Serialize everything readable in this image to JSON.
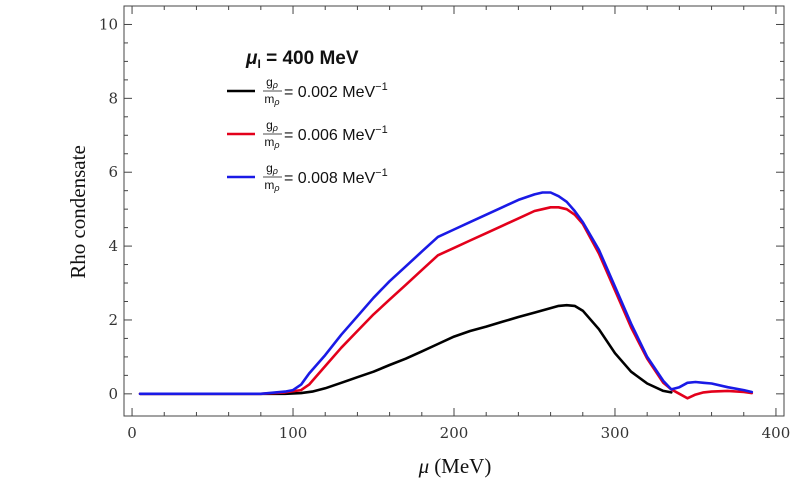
{
  "chart_data": {
    "type": "line",
    "title": "",
    "xlabel_symbol": "μ",
    "xlabel_unit": "(MeV)",
    "ylabel": "Rho condensate",
    "xlim": [
      -5,
      405
    ],
    "ylim": [
      -0.6,
      10.5
    ],
    "xticks": [
      0,
      100,
      200,
      300,
      400
    ],
    "yticks": [
      0,
      2,
      4,
      6,
      8,
      10
    ],
    "grid": false,
    "legend": {
      "placement": "top-left",
      "header_symbol": "μ",
      "header_subscript": "I",
      "header_value": " = 400 MeV",
      "frac_numerator": "g",
      "frac_numerator_sub": "ρ",
      "frac_denominator": "m",
      "frac_denominator_sub": "ρ"
    },
    "series": [
      {
        "name": "g_ρ/m_ρ = 0.002 MeV⁻¹",
        "value_text": " = 0.002 MeV",
        "exponent": "−1",
        "color": "#000000",
        "x": [
          5,
          40,
          60,
          80,
          95,
          105,
          112,
          120,
          130,
          140,
          150,
          160,
          170,
          180,
          190,
          200,
          210,
          220,
          230,
          240,
          250,
          260,
          265,
          270,
          275,
          280,
          290,
          300,
          310,
          320,
          330,
          335
        ],
        "y": [
          0,
          0,
          0,
          0,
          0,
          0.02,
          0.06,
          0.15,
          0.3,
          0.45,
          0.6,
          0.78,
          0.95,
          1.15,
          1.35,
          1.55,
          1.7,
          1.82,
          1.95,
          2.08,
          2.2,
          2.32,
          2.38,
          2.4,
          2.38,
          2.25,
          1.75,
          1.1,
          0.6,
          0.28,
          0.08,
          0.04
        ]
      },
      {
        "name": "g_ρ/m_ρ = 0.006 MeV⁻¹",
        "value_text": " = 0.006 MeV",
        "exponent": "−1",
        "color": "#e3001b",
        "x": [
          5,
          40,
          60,
          80,
          95,
          105,
          110,
          120,
          130,
          140,
          150,
          160,
          170,
          180,
          190,
          200,
          210,
          220,
          230,
          240,
          250,
          255,
          260,
          265,
          270,
          275,
          280,
          290,
          300,
          310,
          320,
          330,
          335,
          340,
          345,
          350,
          355,
          360,
          370,
          380,
          385
        ],
        "y": [
          0,
          0,
          0,
          0,
          0.04,
          0.1,
          0.25,
          0.75,
          1.25,
          1.7,
          2.15,
          2.55,
          2.95,
          3.35,
          3.75,
          3.95,
          4.15,
          4.35,
          4.55,
          4.75,
          4.95,
          5.0,
          5.05,
          5.05,
          5.0,
          4.85,
          4.6,
          3.8,
          2.8,
          1.8,
          0.95,
          0.3,
          0.12,
          0.0,
          -0.12,
          -0.02,
          0.04,
          0.06,
          0.08,
          0.05,
          0.02
        ]
      },
      {
        "name": "g_ρ/m_ρ = 0.008 MeV⁻¹",
        "value_text": " = 0.008 MeV",
        "exponent": "−1",
        "color": "#1a1ae6",
        "x": [
          5,
          40,
          60,
          80,
          95,
          100,
          105,
          110,
          120,
          130,
          140,
          150,
          160,
          170,
          180,
          190,
          200,
          210,
          220,
          230,
          240,
          250,
          255,
          260,
          265,
          270,
          275,
          280,
          290,
          300,
          310,
          320,
          330,
          335,
          340,
          345,
          350,
          355,
          360,
          370,
          380,
          385
        ],
        "y": [
          0,
          0,
          0,
          0,
          0.06,
          0.1,
          0.25,
          0.55,
          1.05,
          1.6,
          2.1,
          2.6,
          3.05,
          3.45,
          3.85,
          4.25,
          4.45,
          4.65,
          4.85,
          5.05,
          5.25,
          5.4,
          5.45,
          5.45,
          5.35,
          5.2,
          4.95,
          4.65,
          3.9,
          2.9,
          1.9,
          1.0,
          0.35,
          0.12,
          0.18,
          0.3,
          0.32,
          0.3,
          0.28,
          0.18,
          0.1,
          0.05
        ]
      }
    ]
  }
}
